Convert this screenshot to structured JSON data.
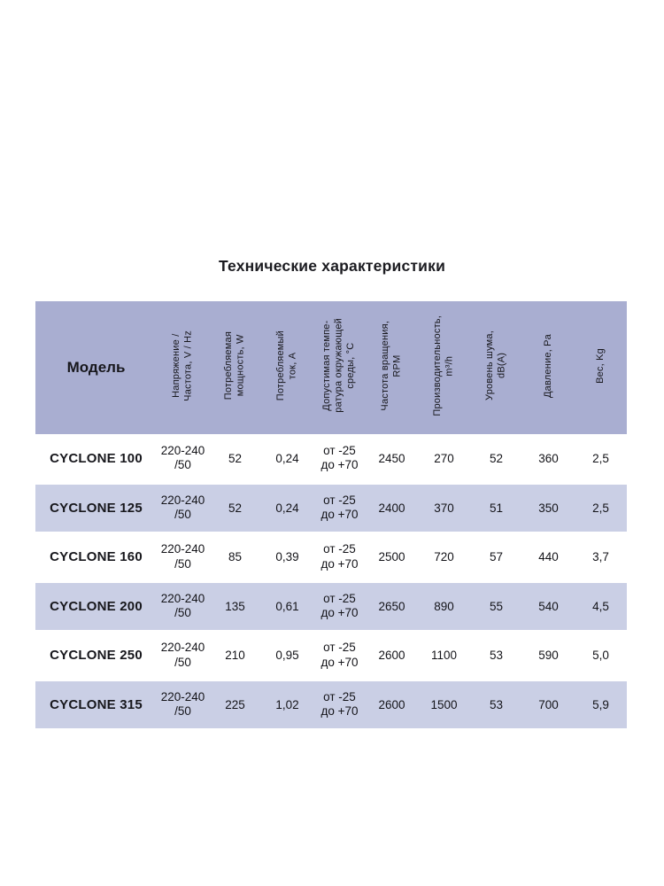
{
  "page": {
    "title": "Технические характеристики"
  },
  "colors": {
    "header_bg": "#a9aed1",
    "stripe_bg": "#cacfe5",
    "text": "#17171c"
  },
  "table": {
    "model_header": "Модель",
    "columns": [
      "Напряжение /\nЧастота, V / Hz",
      "Потребляемая\nмощность, W",
      "Потребляемый\nток, А",
      "Допустимая темпе-\nратура окружающей\nсреды, °C",
      "Частота вращения,\nRPM",
      "Производительность,\nm³/h",
      "Уровень шума,\ndB(А)",
      "Давление, Pa",
      "Вес, Kg"
    ],
    "rows": [
      {
        "model": "CYCLONE 100",
        "values": [
          "220-240\n/50",
          "52",
          "0,24",
          "от -25\nдо +70",
          "2450",
          "270",
          "52",
          "360",
          "2,5"
        ]
      },
      {
        "model": "CYCLONE 125",
        "values": [
          "220-240\n/50",
          "52",
          "0,24",
          "от -25\nдо +70",
          "2400",
          "370",
          "51",
          "350",
          "2,5"
        ]
      },
      {
        "model": "CYCLONE 160",
        "values": [
          "220-240\n/50",
          "85",
          "0,39",
          "от -25\nдо +70",
          "2500",
          "720",
          "57",
          "440",
          "3,7"
        ]
      },
      {
        "model": "CYCLONE 200",
        "values": [
          "220-240\n/50",
          "135",
          "0,61",
          "от -25\nдо +70",
          "2650",
          "890",
          "55",
          "540",
          "4,5"
        ]
      },
      {
        "model": "CYCLONE 250",
        "values": [
          "220-240\n/50",
          "210",
          "0,95",
          "от -25\nдо +70",
          "2600",
          "1100",
          "53",
          "590",
          "5,0"
        ]
      },
      {
        "model": "CYCLONE 315",
        "values": [
          "220-240\n/50",
          "225",
          "1,02",
          "от -25\nдо +70",
          "2600",
          "1500",
          "53",
          "700",
          "5,9"
        ]
      }
    ]
  }
}
